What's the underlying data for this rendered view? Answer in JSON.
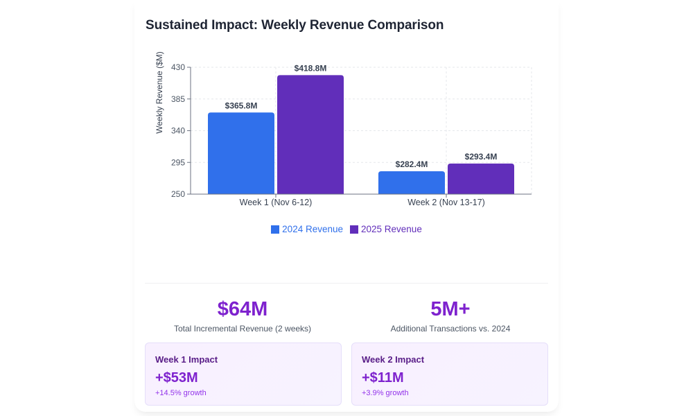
{
  "title": "Sustained Impact: Weekly Revenue Comparison",
  "colors": {
    "series_2024": "#3070eb",
    "series_2025": "#612eba",
    "accent": "#7e22ce"
  },
  "chart_data": {
    "type": "bar",
    "title": "Sustained Impact: Weekly Revenue Comparison",
    "xlabel": "",
    "ylabel": "Weekly Revenue ($M)",
    "ylim": [
      250,
      430
    ],
    "yticks": [
      250,
      295,
      340,
      385,
      430
    ],
    "grid": true,
    "legend_position": "bottom-center",
    "categories": [
      "Week 1 (Nov 6-12)",
      "Week 2 (Nov 13-17)"
    ],
    "series": [
      {
        "name": "2024 Revenue",
        "values": [
          365.8,
          282.4
        ],
        "labels": [
          "$365.8M",
          "$282.4M"
        ]
      },
      {
        "name": "2025 Revenue",
        "values": [
          418.8,
          293.4
        ],
        "labels": [
          "$418.8M",
          "$293.4M"
        ]
      }
    ]
  },
  "stats": [
    {
      "value": "$64M",
      "label": "Total Incremental Revenue (2 weeks)"
    },
    {
      "value": "5M+",
      "label": "Additional Transactions vs. 2024"
    }
  ],
  "impacts": [
    {
      "title": "Week 1 Impact",
      "value": "+$53M",
      "growth": "+14.5% growth"
    },
    {
      "title": "Week 2 Impact",
      "value": "+$11M",
      "growth": "+3.9% growth"
    }
  ]
}
